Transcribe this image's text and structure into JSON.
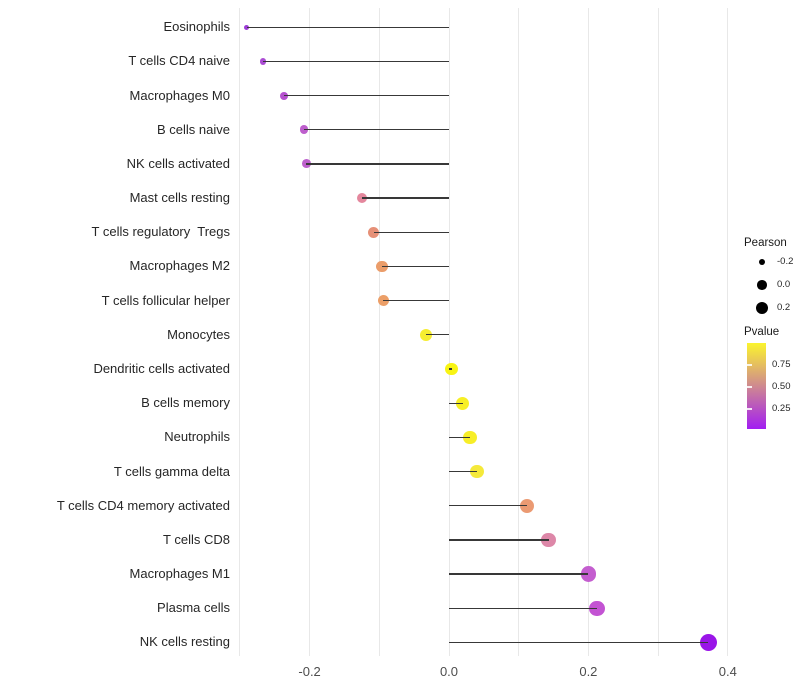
{
  "chart_data": {
    "type": "lollipop",
    "title": "",
    "xlabel": "",
    "ylabel": "",
    "x_axis": {
      "range": [
        -0.305,
        0.42
      ],
      "gridlines": [
        -0.3,
        -0.2,
        -0.1,
        0.0,
        0.1,
        0.2,
        0.3,
        0.4
      ],
      "ticks": [
        -0.2,
        0.0,
        0.2,
        0.4
      ],
      "tick_labels": [
        "-0.2",
        "0.0",
        "0.2",
        "0.4"
      ]
    },
    "points": [
      {
        "label": "Eosinophils",
        "pearson": -0.29,
        "color": "#9c3bd6"
      },
      {
        "label": "T cells CD4 naive",
        "pearson": -0.267,
        "color": "#ab4cd4"
      },
      {
        "label": "Macrophages M0",
        "pearson": -0.237,
        "color": "#b551cf"
      },
      {
        "label": "B cells naive",
        "pearson": -0.208,
        "color": "#bd5ecc"
      },
      {
        "label": "NK cells activated",
        "pearson": -0.205,
        "color": "#bd60cc"
      },
      {
        "label": "Mast cells resting",
        "pearson": -0.125,
        "color": "#e4879d"
      },
      {
        "label": "T cells regulatory  Tregs",
        "pearson": -0.108,
        "color": "#e69077"
      },
      {
        "label": "Macrophages M2",
        "pearson": -0.096,
        "color": "#eb9d6a"
      },
      {
        "label": "T cells follicular helper",
        "pearson": -0.094,
        "color": "#ec9f68"
      },
      {
        "label": "Monocytes",
        "pearson": -0.033,
        "color": "#f6ed30"
      },
      {
        "label": "Dendritic cells activated",
        "pearson": 0.004,
        "color": "#f8f414"
      },
      {
        "label": "B cells memory",
        "pearson": 0.02,
        "color": "#f7ef25"
      },
      {
        "label": "Neutrophils",
        "pearson": 0.03,
        "color": "#f7ee28"
      },
      {
        "label": "T cells gamma delta",
        "pearson": 0.04,
        "color": "#f5e93a"
      },
      {
        "label": "T cells CD4 memory activated",
        "pearson": 0.112,
        "color": "#eb9a72"
      },
      {
        "label": "T cells CD8",
        "pearson": 0.143,
        "color": "#dd87a8"
      },
      {
        "label": "Macrophages M1",
        "pearson": 0.2,
        "color": "#c45ecf"
      },
      {
        "label": "Plasma cells",
        "pearson": 0.212,
        "color": "#c353d3"
      },
      {
        "label": "NK cells resting",
        "pearson": 0.372,
        "color": "#9a15e8"
      }
    ],
    "legend": {
      "size_title": "Pearson",
      "size_entries": [
        {
          "label": "-0.2",
          "radius": 3.3
        },
        {
          "label": "0.0",
          "radius": 4.8
        },
        {
          "label": "0.2",
          "radius": 6.0
        }
      ],
      "color_title": "Pvalue",
      "color_ticks": [
        "0.75",
        "0.50",
        "0.25"
      ],
      "gradient_low": "#a21ef2",
      "gradient_high": "#fbf42e"
    }
  }
}
